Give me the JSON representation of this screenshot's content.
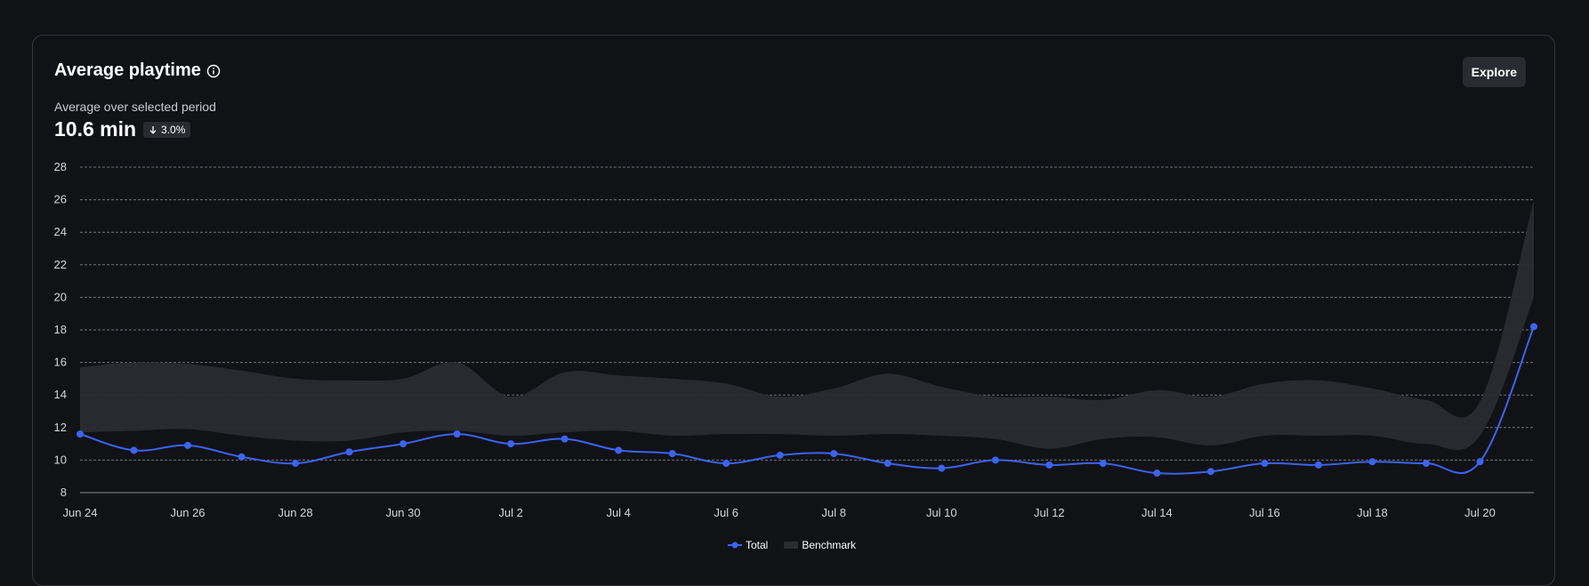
{
  "header": {
    "title": "Average playtime",
    "explore_label": "Explore",
    "subtitle": "Average over selected period",
    "value": "10.6 min",
    "delta": "3.0%"
  },
  "colors": {
    "total": "#3d63f0",
    "benchmark_band": "#2b2c30",
    "grid": "#8a8c92",
    "axis_text": "#d4d6db"
  },
  "chart_data": {
    "type": "line",
    "x": [
      "Jun 24",
      "Jun 25",
      "Jun 26",
      "Jun 27",
      "Jun 28",
      "Jun 29",
      "Jun 30",
      "Jul 1",
      "Jul 2",
      "Jul 3",
      "Jul 4",
      "Jul 5",
      "Jul 6",
      "Jul 7",
      "Jul 8",
      "Jul 9",
      "Jul 10",
      "Jul 11",
      "Jul 12",
      "Jul 13",
      "Jul 14",
      "Jul 15",
      "Jul 16",
      "Jul 17",
      "Jul 18",
      "Jul 19",
      "Jul 20",
      "Jul 21"
    ],
    "x_tick_labels": [
      "Jun 24",
      "Jun 26",
      "Jun 28",
      "Jun 30",
      "Jul 2",
      "Jul 4",
      "Jul 6",
      "Jul 8",
      "Jul 10",
      "Jul 12",
      "Jul 14",
      "Jul 16",
      "Jul 18",
      "Jul 20"
    ],
    "y_ticks": [
      8,
      10,
      12,
      14,
      16,
      18,
      20,
      22,
      24,
      26,
      28
    ],
    "ylim": [
      8,
      28
    ],
    "grid": true,
    "legend_position": "bottom-center",
    "series": [
      {
        "name": "Total",
        "values": [
          11.6,
          10.6,
          10.9,
          10.2,
          9.8,
          10.5,
          11.0,
          11.6,
          11.0,
          11.3,
          10.6,
          10.4,
          9.8,
          10.3,
          10.4,
          9.8,
          9.5,
          10.0,
          9.7,
          9.8,
          9.2,
          9.3,
          9.8,
          9.7,
          9.9,
          9.8,
          9.9,
          18.2
        ]
      },
      {
        "name": "Benchmark",
        "type": "band",
        "upper": [
          15.7,
          16.0,
          15.9,
          15.5,
          15.0,
          14.9,
          15.0,
          16.0,
          13.9,
          15.4,
          15.2,
          15.0,
          14.7,
          13.9,
          14.4,
          15.3,
          14.5,
          13.9,
          13.9,
          13.7,
          14.3,
          13.9,
          14.7,
          14.9,
          14.4,
          13.7,
          13.6,
          26.0
        ],
        "lower": [
          11.7,
          11.8,
          11.9,
          11.5,
          11.2,
          11.2,
          11.7,
          11.8,
          11.5,
          11.7,
          11.8,
          11.5,
          11.6,
          11.6,
          11.5,
          11.6,
          11.5,
          11.3,
          10.7,
          11.3,
          11.4,
          10.9,
          11.5,
          11.5,
          11.5,
          11.0,
          11.5,
          20.0
        ]
      }
    ]
  }
}
